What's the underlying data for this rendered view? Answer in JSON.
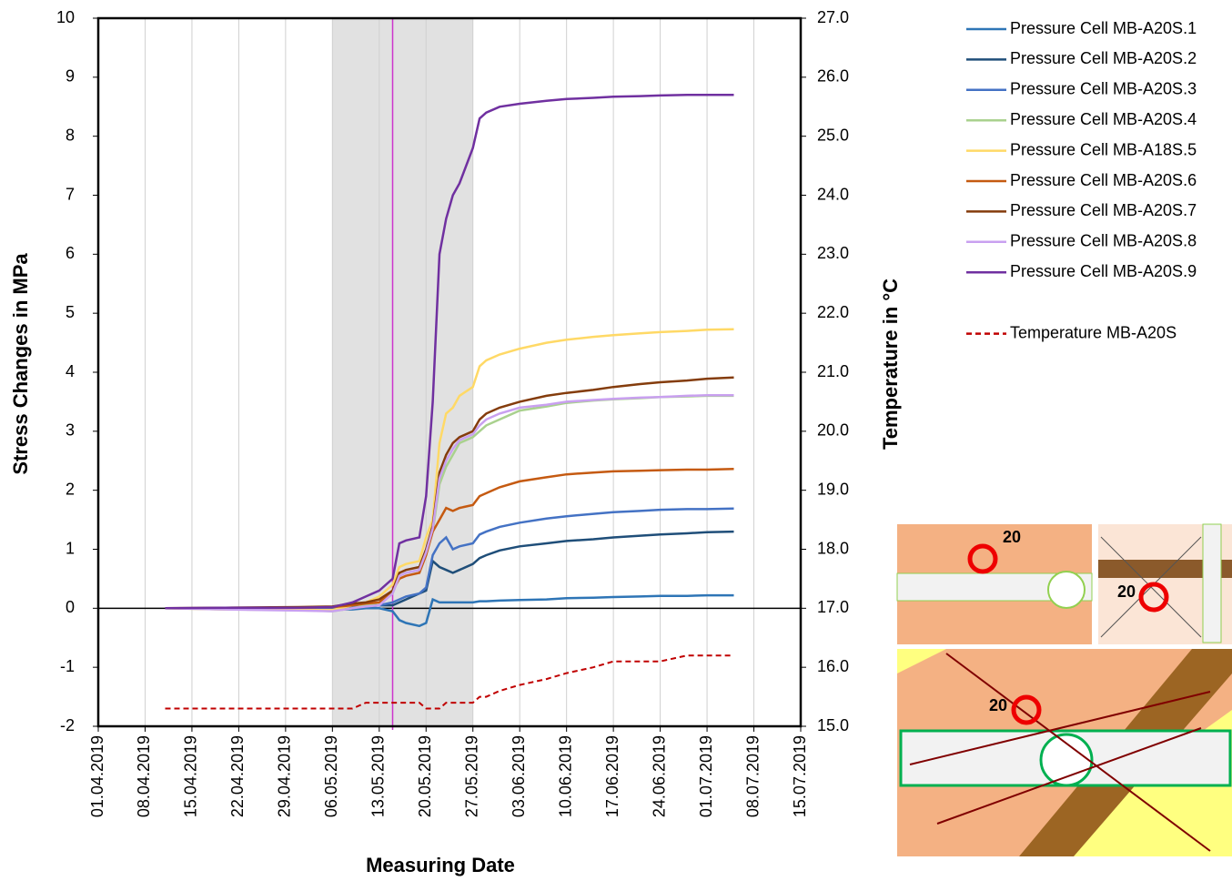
{
  "chart_data": {
    "type": "line",
    "x_label": "Measuring Date",
    "y_label": "Stress Changes   in MPa",
    "y2_label": "Temperature  in °C",
    "xlim": [
      "2019-04-01",
      "2019-07-15"
    ],
    "xticks": [
      {
        "value": "2019-04-01",
        "label": "01.04.2019"
      },
      {
        "value": "2019-04-08",
        "label": "08.04.2019"
      },
      {
        "value": "2019-04-15",
        "label": "15.04.2019"
      },
      {
        "value": "2019-04-22",
        "label": "22.04.2019"
      },
      {
        "value": "2019-04-29",
        "label": "29.04.2019"
      },
      {
        "value": "2019-05-06",
        "label": "06.05.2019"
      },
      {
        "value": "2019-05-13",
        "label": "13.05.2019"
      },
      {
        "value": "2019-05-20",
        "label": "20.05.2019"
      },
      {
        "value": "2019-05-27",
        "label": "27.05.2019"
      },
      {
        "value": "2019-06-03",
        "label": "03.06.2019"
      },
      {
        "value": "2019-06-10",
        "label": "10.06.2019"
      },
      {
        "value": "2019-06-17",
        "label": "17.06.2019"
      },
      {
        "value": "2019-06-24",
        "label": "24.06.2019"
      },
      {
        "value": "2019-07-01",
        "label": "01.07.2019"
      },
      {
        "value": "2019-07-08",
        "label": "08.07.2019"
      },
      {
        "value": "2019-07-15",
        "label": "15.07.2019"
      }
    ],
    "ylim": [
      -2,
      10
    ],
    "yticks": [
      -2,
      -1,
      0,
      1,
      2,
      3,
      4,
      5,
      6,
      7,
      8,
      9,
      10
    ],
    "y2lim": [
      15,
      27
    ],
    "y2ticks": [
      {
        "value": 15,
        "label": "15.0"
      },
      {
        "value": 16,
        "label": "16.0"
      },
      {
        "value": 17,
        "label": "17.0"
      },
      {
        "value": 18,
        "label": "18.0"
      },
      {
        "value": 19,
        "label": "19.0"
      },
      {
        "value": 20,
        "label": "20.0"
      },
      {
        "value": 21,
        "label": "21.0"
      },
      {
        "value": 22,
        "label": "22.0"
      },
      {
        "value": 23,
        "label": "23.0"
      },
      {
        "value": 24,
        "label": "24.0"
      },
      {
        "value": 25,
        "label": "25.0"
      },
      {
        "value": 26,
        "label": "26.0"
      },
      {
        "value": 27,
        "label": "27.0"
      }
    ],
    "grid": "x",
    "legend": "right",
    "shaded_range": [
      "2019-05-06",
      "2019-05-27"
    ],
    "marker_line": "2019-05-15",
    "x": [
      "2019-04-11",
      "2019-04-20",
      "2019-05-01",
      "2019-05-06",
      "2019-05-09",
      "2019-05-11",
      "2019-05-13",
      "2019-05-15",
      "2019-05-16",
      "2019-05-17",
      "2019-05-19",
      "2019-05-20",
      "2019-05-21",
      "2019-05-22",
      "2019-05-23",
      "2019-05-24",
      "2019-05-25",
      "2019-05-27",
      "2019-05-28",
      "2019-05-29",
      "2019-05-31",
      "2019-06-03",
      "2019-06-07",
      "2019-06-10",
      "2019-06-14",
      "2019-06-17",
      "2019-06-21",
      "2019-06-24",
      "2019-06-28",
      "2019-07-01",
      "2019-07-05"
    ],
    "series": [
      {
        "name": "Pressure Cell MB-A20S.1",
        "color": "#2e75b6",
        "values": [
          0,
          0,
          0,
          -0.02,
          -0.02,
          0,
          0,
          -0.05,
          -0.2,
          -0.25,
          -0.3,
          -0.25,
          0.15,
          0.1,
          0.1,
          0.1,
          0.1,
          0.1,
          0.12,
          0.12,
          0.13,
          0.14,
          0.15,
          0.17,
          0.18,
          0.19,
          0.2,
          0.21,
          0.21,
          0.22,
          0.22
        ]
      },
      {
        "name": "Pressure Cell MB-A20S.2",
        "color": "#1f4e79",
        "values": [
          0,
          0,
          0,
          0,
          0.02,
          0.03,
          0.05,
          0.05,
          0.1,
          0.15,
          0.25,
          0.3,
          0.8,
          0.7,
          0.65,
          0.6,
          0.65,
          0.75,
          0.85,
          0.9,
          0.98,
          1.05,
          1.1,
          1.14,
          1.17,
          1.2,
          1.23,
          1.25,
          1.27,
          1.29,
          1.3
        ]
      },
      {
        "name": "Pressure Cell MB-A20S.3",
        "color": "#4472c4",
        "values": [
          0,
          0,
          0,
          0,
          0.02,
          0.03,
          0.05,
          0.1,
          0.15,
          0.2,
          0.25,
          0.35,
          0.9,
          1.1,
          1.2,
          1.0,
          1.05,
          1.1,
          1.25,
          1.3,
          1.38,
          1.45,
          1.52,
          1.56,
          1.6,
          1.63,
          1.65,
          1.67,
          1.68,
          1.68,
          1.69
        ]
      },
      {
        "name": "Pressure Cell MB-A20S.4",
        "color": "#a9d18e",
        "values": [
          0,
          -0.02,
          -0.03,
          -0.05,
          0,
          0.05,
          0.1,
          0.25,
          0.55,
          0.6,
          0.65,
          0.95,
          1.3,
          2.1,
          2.4,
          2.6,
          2.8,
          2.9,
          3.0,
          3.1,
          3.2,
          3.35,
          3.42,
          3.48,
          3.52,
          3.54,
          3.56,
          3.58,
          3.59,
          3.6,
          3.6
        ]
      },
      {
        "name": "Pressure Cell MB-A18S.5",
        "color": "#ffd966",
        "values": [
          0,
          -0.02,
          -0.03,
          -0.03,
          0.05,
          0.1,
          0.2,
          0.4,
          0.7,
          0.75,
          0.8,
          1.2,
          1.5,
          2.8,
          3.3,
          3.4,
          3.6,
          3.75,
          4.1,
          4.2,
          4.3,
          4.4,
          4.5,
          4.55,
          4.6,
          4.63,
          4.66,
          4.68,
          4.7,
          4.72,
          4.73
        ]
      },
      {
        "name": "Pressure Cell MB-A20S.6",
        "color": "#c55a11",
        "values": [
          0,
          0,
          0.01,
          0.02,
          0.05,
          0.08,
          0.1,
          0.3,
          0.5,
          0.55,
          0.6,
          0.9,
          1.3,
          1.5,
          1.7,
          1.65,
          1.7,
          1.75,
          1.9,
          1.95,
          2.05,
          2.15,
          2.22,
          2.27,
          2.3,
          2.32,
          2.33,
          2.34,
          2.35,
          2.35,
          2.36
        ]
      },
      {
        "name": "Pressure Cell MB-A20S.7",
        "color": "#843c0c",
        "values": [
          0,
          0.01,
          0.02,
          0.03,
          0.08,
          0.1,
          0.15,
          0.3,
          0.6,
          0.65,
          0.7,
          1.0,
          1.4,
          2.3,
          2.6,
          2.8,
          2.9,
          3.0,
          3.2,
          3.3,
          3.4,
          3.5,
          3.6,
          3.65,
          3.7,
          3.75,
          3.8,
          3.83,
          3.86,
          3.89,
          3.91
        ]
      },
      {
        "name": "Pressure Cell MB-A20S.8",
        "color": "#c9a0f0",
        "values": [
          0,
          -0.02,
          -0.04,
          -0.05,
          0,
          0.03,
          0.05,
          0.25,
          0.55,
          0.6,
          0.65,
          0.95,
          1.35,
          2.2,
          2.5,
          2.7,
          2.85,
          2.95,
          3.1,
          3.2,
          3.3,
          3.4,
          3.45,
          3.5,
          3.53,
          3.55,
          3.57,
          3.58,
          3.6,
          3.61,
          3.61
        ]
      },
      {
        "name": "Pressure Cell MB-A20S.9",
        "color": "#7030a0",
        "values": [
          0,
          0.01,
          0.01,
          0.02,
          0.1,
          0.2,
          0.3,
          0.5,
          1.1,
          1.15,
          1.2,
          1.9,
          3.5,
          6.0,
          6.6,
          7.0,
          7.2,
          7.8,
          8.3,
          8.4,
          8.5,
          8.55,
          8.6,
          8.63,
          8.65,
          8.67,
          8.68,
          8.69,
          8.7,
          8.7,
          8.7
        ]
      },
      {
        "name": "Temperature MB-A20S",
        "color": "#c00000",
        "style": "dashed",
        "axis": "y2",
        "values": [
          15.3,
          15.3,
          15.3,
          15.3,
          15.3,
          15.4,
          15.4,
          15.4,
          15.4,
          15.4,
          15.4,
          15.3,
          15.3,
          15.3,
          15.4,
          15.4,
          15.4,
          15.4,
          15.5,
          15.5,
          15.6,
          15.7,
          15.8,
          15.9,
          16.0,
          16.1,
          16.1,
          16.1,
          16.2,
          16.2,
          16.2
        ]
      }
    ]
  },
  "insets": [
    {
      "label": "20"
    },
    {
      "label": "20"
    },
    {
      "label": "20"
    }
  ]
}
